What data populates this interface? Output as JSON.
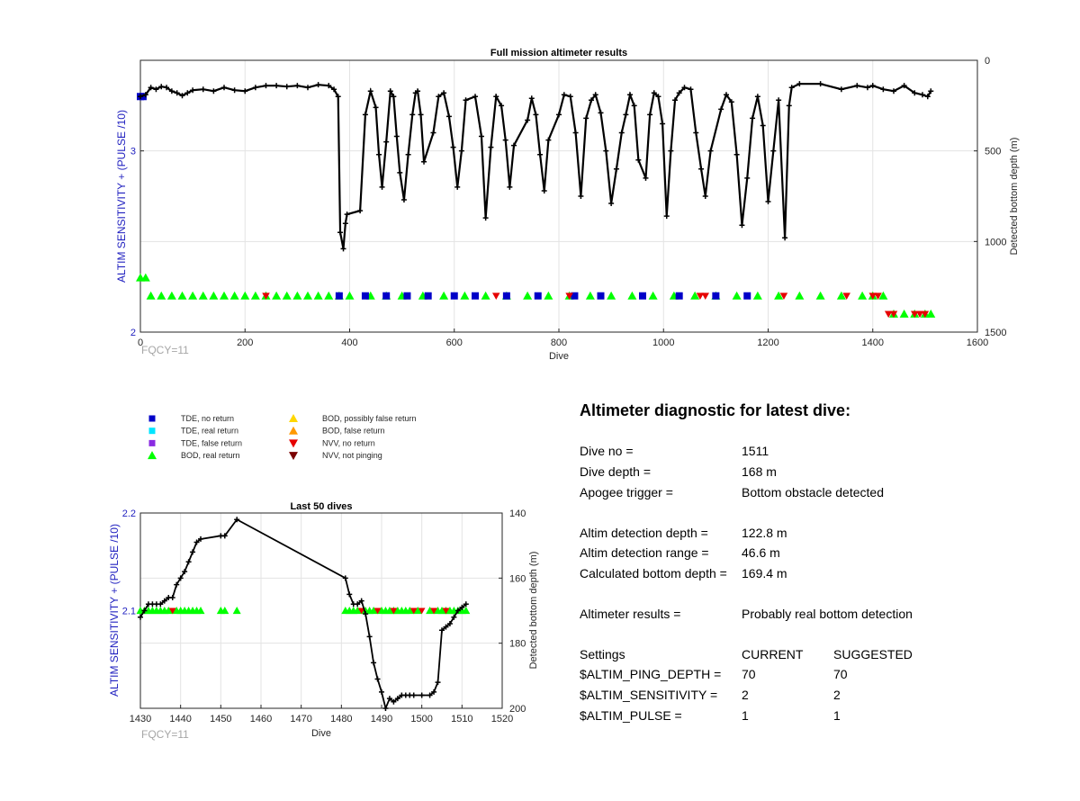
{
  "colors": {
    "tde_no_return": "#0000c8",
    "tde_real_return": "#00e5ff",
    "tde_false_return": "#8a2be2",
    "bod_real_return": "#00ff00",
    "bod_possibly_false": "#ffd700",
    "bod_false": "#ff9900",
    "nvv_no_return": "#e60000",
    "nvv_not_pinging": "#7a0000",
    "depth_line": "#000000",
    "left_axis": "#1f1fbf"
  },
  "chart_data": [
    {
      "type": "scatter",
      "title": "Full mission altimeter results",
      "xlabel": "Dive",
      "ylabel_left": "ALTIM SENSITIVITY + (PULSE /10)",
      "ylabel_right": "Detected bottom depth (m)",
      "xlim": [
        0,
        1600
      ],
      "xticks": [
        0,
        200,
        400,
        600,
        800,
        1000,
        1200,
        1400,
        1600
      ],
      "ylim_left": [
        2,
        3.5
      ],
      "yticks_left": [
        2,
        3
      ],
      "ylim_right": [
        1500,
        0
      ],
      "yticks_right": [
        0,
        500,
        1000,
        1500
      ],
      "grid": true,
      "annotation": "FQCY=11",
      "series": [
        {
          "name": "Detected bottom depth",
          "x": [
            0,
            10,
            20,
            30,
            40,
            50,
            60,
            70,
            80,
            90,
            100,
            120,
            140,
            160,
            180,
            200,
            220,
            240,
            260,
            280,
            300,
            320,
            340,
            360,
            370,
            378,
            382,
            388,
            392,
            395,
            420,
            430,
            440,
            450,
            456,
            462,
            470,
            478,
            484,
            490,
            496,
            504,
            512,
            520,
            526,
            530,
            536,
            542,
            560,
            570,
            580,
            590,
            598,
            606,
            614,
            622,
            640,
            652,
            660,
            670,
            680,
            690,
            698,
            706,
            714,
            740,
            748,
            756,
            764,
            772,
            780,
            800,
            810,
            822,
            832,
            842,
            852,
            862,
            870,
            880,
            890,
            900,
            910,
            920,
            928,
            936,
            944,
            952,
            966,
            974,
            982,
            990,
            998,
            1006,
            1014,
            1022,
            1030,
            1040,
            1052,
            1062,
            1072,
            1080,
            1090,
            1110,
            1120,
            1130,
            1140,
            1150,
            1160,
            1170,
            1180,
            1190,
            1200,
            1210,
            1220,
            1232,
            1240,
            1245,
            1260,
            1300,
            1340,
            1370,
            1390,
            1400,
            1420,
            1440,
            1460,
            1480,
            1495,
            1505,
            1511
          ],
          "y": [
            200,
            190,
            150,
            160,
            145,
            150,
            170,
            180,
            195,
            180,
            165,
            160,
            170,
            150,
            165,
            170,
            150,
            140,
            140,
            145,
            140,
            150,
            135,
            140,
            160,
            200,
            950,
            1040,
            900,
            850,
            830,
            300,
            170,
            260,
            520,
            700,
            450,
            170,
            200,
            420,
            620,
            770,
            520,
            300,
            180,
            170,
            300,
            560,
            400,
            200,
            180,
            310,
            480,
            700,
            500,
            220,
            200,
            420,
            870,
            480,
            200,
            250,
            440,
            700,
            470,
            330,
            210,
            300,
            520,
            720,
            440,
            300,
            190,
            200,
            400,
            750,
            320,
            220,
            190,
            290,
            500,
            790,
            600,
            400,
            300,
            190,
            250,
            550,
            650,
            300,
            180,
            200,
            350,
            860,
            500,
            220,
            180,
            150,
            160,
            400,
            600,
            750,
            500,
            270,
            190,
            230,
            520,
            910,
            650,
            320,
            200,
            360,
            780,
            500,
            220,
            980,
            250,
            150,
            130,
            130,
            160,
            140,
            150,
            140,
            160,
            170,
            140,
            180,
            190,
            200,
            170
          ]
        },
        {
          "name": "BOD, real return",
          "x": [
            0,
            10,
            20,
            40,
            60,
            80,
            100,
            120,
            140,
            160,
            180,
            200,
            220,
            240,
            260,
            280,
            300,
            320,
            340,
            360,
            380,
            400,
            440,
            470,
            500,
            540,
            580,
            620,
            660,
            700,
            740,
            780,
            820,
            860,
            900,
            940,
            980,
            1020,
            1060,
            1100,
            1140,
            1180,
            1220,
            1260,
            1300,
            1340,
            1380,
            1400,
            1420,
            1440,
            1460,
            1480,
            1500,
            1511
          ],
          "y": [
            2.3,
            2.3,
            2.2,
            2.2,
            2.2,
            2.2,
            2.2,
            2.2,
            2.2,
            2.2,
            2.2,
            2.2,
            2.2,
            2.2,
            2.2,
            2.2,
            2.2,
            2.2,
            2.2,
            2.2,
            2.2,
            2.2,
            2.2,
            2.2,
            2.2,
            2.2,
            2.2,
            2.2,
            2.2,
            2.2,
            2.2,
            2.2,
            2.2,
            2.2,
            2.2,
            2.2,
            2.2,
            2.2,
            2.2,
            2.2,
            2.2,
            2.2,
            2.2,
            2.2,
            2.2,
            2.2,
            2.2,
            2.2,
            2.2,
            2.1,
            2.1,
            2.1,
            2.1,
            2.1
          ]
        },
        {
          "name": "TDE, no return",
          "x": [
            0,
            5,
            380,
            430,
            470,
            510,
            550,
            600,
            640,
            700,
            760,
            830,
            880,
            960,
            1030,
            1100,
            1160
          ],
          "y": [
            3.3,
            3.3,
            2.2,
            2.2,
            2.2,
            2.2,
            2.2,
            2.2,
            2.2,
            2.2,
            2.2,
            2.2,
            2.2,
            2.2,
            2.2,
            2.2,
            2.2
          ]
        },
        {
          "name": "NVV, no return",
          "x": [
            240,
            680,
            820,
            1070,
            1080,
            1230,
            1350,
            1400,
            1410,
            1430,
            1440,
            1480,
            1490,
            1500
          ],
          "y": [
            2.2,
            2.2,
            2.2,
            2.2,
            2.2,
            2.2,
            2.2,
            2.2,
            2.2,
            2.1,
            2.1,
            2.1,
            2.1,
            2.1
          ]
        }
      ]
    },
    {
      "type": "scatter",
      "title": "Last 50 dives",
      "xlabel": "Dive",
      "ylabel_left": "ALTIM SENSITIVITY + (PULSE /10)",
      "ylabel_right": "Detected bottom depth (m)",
      "xlim": [
        1430,
        1520
      ],
      "xticks": [
        1430,
        1440,
        1450,
        1460,
        1470,
        1480,
        1490,
        1500,
        1510,
        1520
      ],
      "ylim_left": [
        2.0,
        2.2
      ],
      "yticks_left": [
        2.1,
        2.2
      ],
      "ylim_right": [
        200,
        140
      ],
      "yticks_right": [
        140,
        160,
        180,
        200
      ],
      "grid": true,
      "annotation": "FQCY=11",
      "series": [
        {
          "name": "Detected bottom depth",
          "x": [
            1430,
            1431,
            1432,
            1433,
            1434,
            1435,
            1436,
            1437,
            1438,
            1439,
            1440,
            1441,
            1442,
            1443,
            1444,
            1445,
            1450,
            1451,
            1454,
            1481,
            1482,
            1483,
            1484,
            1485,
            1486,
            1487,
            1488,
            1489,
            1490,
            1491,
            1492,
            1493,
            1494,
            1495,
            1496,
            1497,
            1498,
            1500,
            1502,
            1503,
            1504,
            1505,
            1506,
            1507,
            1508,
            1509,
            1510,
            1511
          ],
          "y": [
            172,
            170,
            168,
            168,
            168,
            168,
            167,
            166,
            166,
            162,
            160,
            158,
            155,
            152,
            149,
            148,
            147,
            147,
            142,
            160,
            165,
            168,
            168,
            167,
            171,
            178,
            186,
            191,
            195,
            200,
            197,
            198,
            197,
            196,
            196,
            196,
            196,
            196,
            196,
            195,
            192,
            176,
            175,
            174,
            172,
            170,
            169,
            168
          ]
        },
        {
          "name": "BOD, real return",
          "x": [
            1430,
            1431,
            1432,
            1433,
            1434,
            1435,
            1436,
            1437,
            1439,
            1440,
            1441,
            1442,
            1443,
            1444,
            1445,
            1450,
            1451,
            1454,
            1481,
            1482,
            1483,
            1484,
            1486,
            1487,
            1488,
            1490,
            1491,
            1492,
            1493,
            1494,
            1495,
            1496,
            1497,
            1499,
            1502,
            1504,
            1505,
            1506,
            1507,
            1508,
            1509,
            1510,
            1511
          ],
          "y": [
            2.1,
            2.1,
            2.1,
            2.1,
            2.1,
            2.1,
            2.1,
            2.1,
            2.1,
            2.1,
            2.1,
            2.1,
            2.1,
            2.1,
            2.1,
            2.1,
            2.1,
            2.1,
            2.1,
            2.1,
            2.1,
            2.1,
            2.1,
            2.1,
            2.1,
            2.1,
            2.1,
            2.1,
            2.1,
            2.1,
            2.1,
            2.1,
            2.1,
            2.1,
            2.1,
            2.1,
            2.1,
            2.1,
            2.1,
            2.1,
            2.1,
            2.1,
            2.1
          ]
        },
        {
          "name": "NVV, no return",
          "x": [
            1438,
            1485,
            1489,
            1493,
            1498,
            1500,
            1503,
            1506
          ],
          "y": [
            2.1,
            2.1,
            2.1,
            2.1,
            2.1,
            2.1,
            2.1,
            2.1
          ]
        }
      ]
    }
  ],
  "legend": {
    "items": [
      {
        "label": "TDE, no return",
        "marker": "square",
        "color": "#0000c8"
      },
      {
        "label": "TDE, real return",
        "marker": "square",
        "color": "#00e5ff"
      },
      {
        "label": "TDE, false return",
        "marker": "square",
        "color": "#8a2be2"
      },
      {
        "label": "BOD, real return",
        "marker": "triangle-up",
        "color": "#00ff00"
      },
      {
        "label": "BOD, possibly false return",
        "marker": "triangle-up",
        "color": "#ffd700"
      },
      {
        "label": "BOD, false return",
        "marker": "triangle-up",
        "color": "#ff9900"
      },
      {
        "label": "NVV, no return",
        "marker": "triangle-down",
        "color": "#e60000"
      },
      {
        "label": "NVV, not pinging",
        "marker": "triangle-down",
        "color": "#7a0000"
      }
    ]
  },
  "diagnostic": {
    "title": "Altimeter diagnostic for latest dive:",
    "rows": [
      {
        "label": "Dive no =",
        "value": "1511"
      },
      {
        "label": "Dive depth =",
        "value": "168 m"
      },
      {
        "label": "Apogee trigger =",
        "value": "Bottom obstacle detected"
      },
      {
        "label": "Altim detection depth =",
        "value": "122.8 m"
      },
      {
        "label": "Altim detection range =",
        "value": "46.6 m"
      },
      {
        "label": "Calculated bottom depth =",
        "value": "169.4 m"
      },
      {
        "label": "Altimeter results =",
        "value": "Probably real bottom detection"
      }
    ],
    "settings": {
      "header": [
        "Settings",
        "CURRENT",
        "SUGGESTED"
      ],
      "rows": [
        {
          "label": "$ALTIM_PING_DEPTH =",
          "current": "70",
          "suggested": "70"
        },
        {
          "label": "$ALTIM_SENSITIVITY =",
          "current": "2",
          "suggested": "2"
        },
        {
          "label": "$ALTIM_PULSE =",
          "current": "1",
          "suggested": "1"
        }
      ]
    }
  }
}
